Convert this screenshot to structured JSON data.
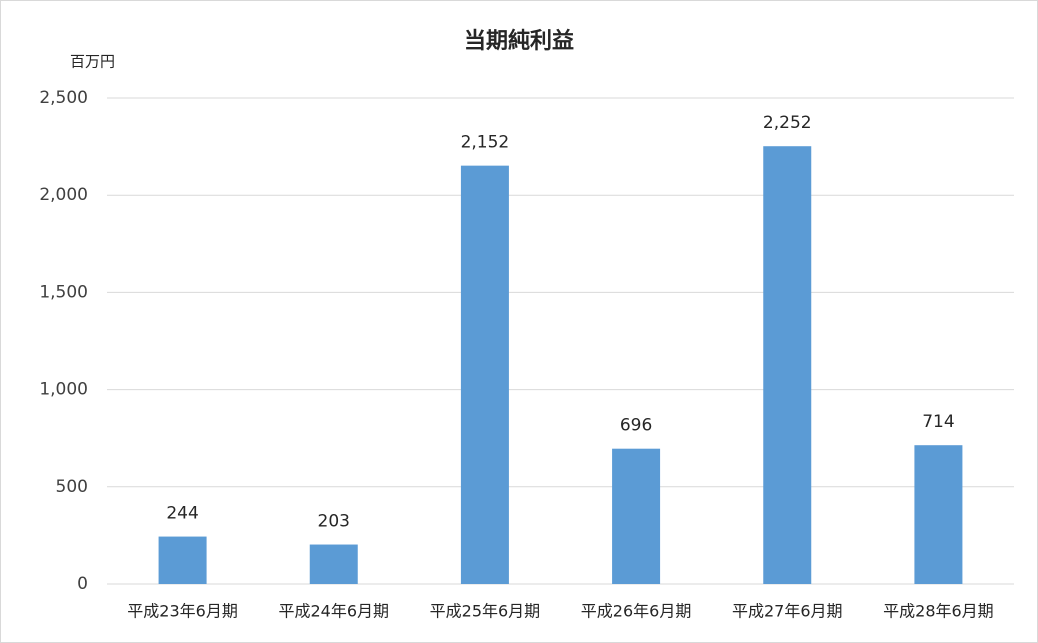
{
  "chart_data": {
    "type": "bar",
    "title": "当期純利益",
    "y_label": "百万円",
    "categories": [
      "平成23年6月期",
      "平成24年6月期",
      "平成25年6月期",
      "平成26年6月期",
      "平成27年6月期",
      "平成28年6月期"
    ],
    "values": [
      244,
      203,
      2152,
      696,
      2252,
      714
    ],
    "value_labels": [
      "244",
      "203",
      "2,152",
      "696",
      "2,252",
      "714"
    ],
    "color": "#5b9bd5",
    "ylim": [
      0,
      2500
    ],
    "yticks": [
      0,
      500,
      {
        "value": 1000,
        "label": "1,000"
      },
      {
        "value": 1500,
        "label": "1,500"
      },
      {
        "value": 2000,
        "label": "2,000"
      },
      {
        "value": 2500,
        "label": "2,500"
      }
    ],
    "grid": true
  }
}
